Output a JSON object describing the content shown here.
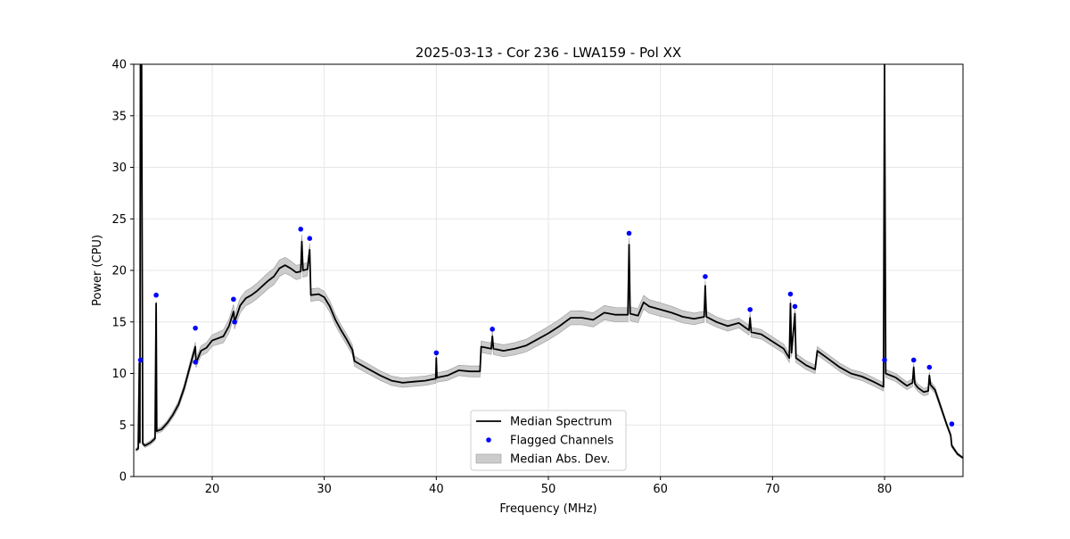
{
  "chart_data": {
    "type": "line",
    "title": "2025-03-13 - Cor 236 - LWA159 - Pol XX",
    "xlabel": "Frequency (MHz)",
    "ylabel": "Power (CPU)",
    "xlim": [
      13,
      87
    ],
    "ylim": [
      0,
      40
    ],
    "xticks": [
      20,
      30,
      40,
      50,
      60,
      70,
      80
    ],
    "yticks": [
      0,
      5,
      10,
      15,
      20,
      25,
      30,
      35,
      40
    ],
    "grid": true,
    "legend_position": "bottom-center",
    "series": [
      {
        "name": "Median Spectrum",
        "style": "line",
        "color": "#000000",
        "points": [
          [
            13.2,
            2.6
          ],
          [
            13.4,
            2.7
          ],
          [
            13.5,
            11.0
          ],
          [
            13.55,
            3.3
          ],
          [
            13.6,
            40.0
          ],
          [
            13.7,
            40.0
          ],
          [
            13.8,
            3.2
          ],
          [
            14.0,
            3.0
          ],
          [
            14.5,
            3.3
          ],
          [
            14.9,
            3.7
          ],
          [
            15.0,
            16.8
          ],
          [
            15.05,
            4.4
          ],
          [
            15.5,
            4.6
          ],
          [
            16.0,
            5.2
          ],
          [
            16.5,
            6.0
          ],
          [
            17.0,
            7.0
          ],
          [
            17.5,
            8.6
          ],
          [
            18.0,
            10.6
          ],
          [
            18.5,
            12.6
          ],
          [
            18.55,
            11.0
          ],
          [
            19.0,
            12.2
          ],
          [
            19.5,
            12.5
          ],
          [
            20.0,
            13.2
          ],
          [
            20.5,
            13.4
          ],
          [
            21.0,
            13.6
          ],
          [
            21.5,
            14.6
          ],
          [
            21.9,
            16.0
          ],
          [
            22.0,
            15.0
          ],
          [
            22.5,
            16.6
          ],
          [
            23.0,
            17.3
          ],
          [
            23.5,
            17.6
          ],
          [
            24.0,
            18.0
          ],
          [
            24.5,
            18.5
          ],
          [
            25.0,
            19.0
          ],
          [
            25.5,
            19.4
          ],
          [
            26.0,
            20.2
          ],
          [
            26.5,
            20.5
          ],
          [
            27.0,
            20.2
          ],
          [
            27.5,
            19.8
          ],
          [
            27.9,
            19.9
          ],
          [
            28.0,
            22.8
          ],
          [
            28.1,
            20.0
          ],
          [
            28.5,
            20.1
          ],
          [
            28.7,
            22.0
          ],
          [
            28.8,
            17.6
          ],
          [
            29.5,
            17.7
          ],
          [
            30.0,
            17.4
          ],
          [
            30.5,
            16.5
          ],
          [
            31.0,
            15.2
          ],
          [
            31.5,
            14.2
          ],
          [
            32.0,
            13.3
          ],
          [
            32.5,
            12.3
          ],
          [
            32.7,
            11.2
          ],
          [
            33.0,
            11.0
          ],
          [
            34.0,
            10.4
          ],
          [
            35.0,
            9.8
          ],
          [
            36.0,
            9.3
          ],
          [
            37.0,
            9.1
          ],
          [
            38.0,
            9.2
          ],
          [
            39.0,
            9.3
          ],
          [
            39.95,
            9.5
          ],
          [
            40.0,
            11.5
          ],
          [
            40.05,
            9.6
          ],
          [
            41.0,
            9.8
          ],
          [
            42.0,
            10.3
          ],
          [
            43.0,
            10.2
          ],
          [
            43.9,
            10.2
          ],
          [
            44.0,
            12.6
          ],
          [
            44.9,
            12.4
          ],
          [
            45.0,
            13.6
          ],
          [
            45.1,
            12.4
          ],
          [
            46.0,
            12.2
          ],
          [
            47.0,
            12.4
          ],
          [
            48.0,
            12.7
          ],
          [
            49.0,
            13.3
          ],
          [
            50.0,
            13.9
          ],
          [
            51.0,
            14.6
          ],
          [
            52.0,
            15.4
          ],
          [
            53.0,
            15.4
          ],
          [
            54.0,
            15.2
          ],
          [
            55.0,
            15.9
          ],
          [
            56.0,
            15.7
          ],
          [
            57.1,
            15.7
          ],
          [
            57.2,
            22.5
          ],
          [
            57.3,
            15.8
          ],
          [
            58.0,
            15.6
          ],
          [
            58.5,
            16.9
          ],
          [
            59.0,
            16.5
          ],
          [
            60.0,
            16.2
          ],
          [
            61.0,
            15.9
          ],
          [
            62.0,
            15.5
          ],
          [
            63.0,
            15.3
          ],
          [
            63.9,
            15.5
          ],
          [
            64.0,
            18.5
          ],
          [
            64.1,
            15.5
          ],
          [
            65.0,
            15.0
          ],
          [
            66.0,
            14.6
          ],
          [
            67.0,
            14.9
          ],
          [
            67.9,
            14.2
          ],
          [
            68.0,
            15.4
          ],
          [
            68.1,
            14.0
          ],
          [
            69.0,
            13.8
          ],
          [
            70.0,
            13.1
          ],
          [
            71.0,
            12.4
          ],
          [
            71.5,
            11.5
          ],
          [
            71.6,
            16.8
          ],
          [
            71.7,
            12.0
          ],
          [
            72.0,
            15.8
          ],
          [
            72.1,
            11.5
          ],
          [
            73.0,
            10.8
          ],
          [
            73.8,
            10.4
          ],
          [
            74.0,
            12.2
          ],
          [
            75.0,
            11.4
          ],
          [
            76.0,
            10.6
          ],
          [
            77.0,
            10.0
          ],
          [
            78.0,
            9.7
          ],
          [
            79.0,
            9.2
          ],
          [
            79.9,
            8.7
          ],
          [
            80.0,
            40.0
          ],
          [
            80.1,
            10.0
          ],
          [
            81.0,
            9.6
          ],
          [
            82.0,
            8.8
          ],
          [
            82.5,
            9.1
          ],
          [
            82.6,
            10.6
          ],
          [
            82.7,
            9.0
          ],
          [
            83.0,
            8.6
          ],
          [
            83.5,
            8.2
          ],
          [
            83.9,
            8.3
          ],
          [
            84.0,
            9.8
          ],
          [
            84.1,
            8.9
          ],
          [
            84.5,
            8.4
          ],
          [
            85.0,
            6.8
          ],
          [
            85.5,
            5.2
          ],
          [
            85.9,
            4.0
          ],
          [
            86.0,
            3.0
          ],
          [
            86.5,
            2.2
          ],
          [
            87.0,
            1.8
          ]
        ]
      },
      {
        "name": "Flagged Channels",
        "style": "scatter",
        "color": "#0000ff",
        "points": [
          [
            13.6,
            11.3
          ],
          [
            15.0,
            17.6
          ],
          [
            18.5,
            14.4
          ],
          [
            18.5,
            11.1
          ],
          [
            21.9,
            17.2
          ],
          [
            22.0,
            15.0
          ],
          [
            27.9,
            24.0
          ],
          [
            28.7,
            23.1
          ],
          [
            40.0,
            12.0
          ],
          [
            45.0,
            14.3
          ],
          [
            57.2,
            23.6
          ],
          [
            64.0,
            19.4
          ],
          [
            68.0,
            16.2
          ],
          [
            71.6,
            17.7
          ],
          [
            72.0,
            16.5
          ],
          [
            80.0,
            11.3
          ],
          [
            82.6,
            11.3
          ],
          [
            84.0,
            10.6
          ],
          [
            86.0,
            5.1
          ]
        ]
      },
      {
        "name": "Median Abs. Dev.",
        "style": "band",
        "color": "#cccccc",
        "points": [
          [
            13.2,
            0.15
          ],
          [
            16.0,
            0.25
          ],
          [
            18.0,
            0.4
          ],
          [
            22.0,
            0.7
          ],
          [
            26.0,
            0.8
          ],
          [
            29.0,
            0.6
          ],
          [
            32.0,
            0.5
          ],
          [
            36.0,
            0.45
          ],
          [
            40.0,
            0.45
          ],
          [
            44.0,
            0.55
          ],
          [
            50.0,
            0.65
          ],
          [
            55.0,
            0.7
          ],
          [
            60.0,
            0.65
          ],
          [
            65.0,
            0.5
          ],
          [
            70.0,
            0.45
          ],
          [
            75.0,
            0.4
          ],
          [
            80.0,
            0.4
          ],
          [
            84.0,
            0.35
          ],
          [
            87.0,
            0.1
          ]
        ]
      }
    ]
  }
}
